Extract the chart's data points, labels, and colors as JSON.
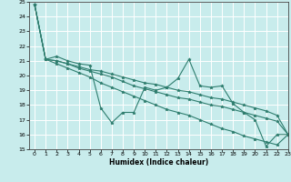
{
  "xlabel": "Humidex (Indice chaleur)",
  "xlim": [
    -0.5,
    23
  ],
  "ylim": [
    15,
    25
  ],
  "yticks": [
    15,
    16,
    17,
    18,
    19,
    20,
    21,
    22,
    23,
    24,
    25
  ],
  "xticks": [
    0,
    1,
    2,
    3,
    4,
    5,
    6,
    7,
    8,
    9,
    10,
    11,
    12,
    13,
    14,
    15,
    16,
    17,
    18,
    19,
    20,
    21,
    22,
    23
  ],
  "background_color": "#c8ecec",
  "grid_color": "#ffffff",
  "line_color": "#2e7d6e",
  "series": [
    [
      24.8,
      21.1,
      21.3,
      21.0,
      20.8,
      20.7,
      17.8,
      16.8,
      17.5,
      17.5,
      19.2,
      19.0,
      19.2,
      19.8,
      21.1,
      19.3,
      19.2,
      19.3,
      18.1,
      17.5,
      17.0,
      15.2,
      16.0,
      16.0
    ],
    [
      24.8,
      21.1,
      21.0,
      20.8,
      20.5,
      20.3,
      20.1,
      19.9,
      19.6,
      19.3,
      19.1,
      18.9,
      18.7,
      18.5,
      18.4,
      18.2,
      18.0,
      17.9,
      17.7,
      17.5,
      17.3,
      17.1,
      16.9,
      16.0
    ],
    [
      24.8,
      21.1,
      21.0,
      20.8,
      20.6,
      20.4,
      20.3,
      20.1,
      19.9,
      19.7,
      19.5,
      19.4,
      19.2,
      19.0,
      18.9,
      18.7,
      18.5,
      18.4,
      18.2,
      18.0,
      17.8,
      17.6,
      17.3,
      16.0
    ],
    [
      24.8,
      21.1,
      20.8,
      20.5,
      20.2,
      19.9,
      19.5,
      19.2,
      18.9,
      18.6,
      18.3,
      18.0,
      17.7,
      17.5,
      17.3,
      17.0,
      16.7,
      16.4,
      16.2,
      15.9,
      15.7,
      15.5,
      15.3,
      16.0
    ]
  ]
}
